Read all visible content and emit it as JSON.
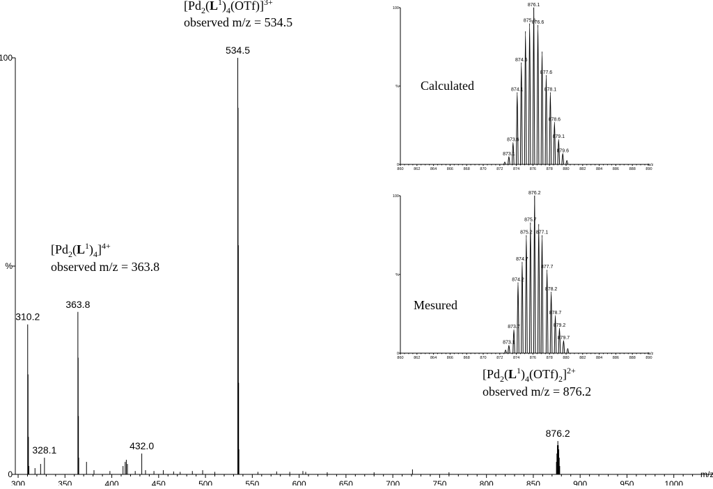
{
  "chart_data": [
    {
      "type": "line",
      "id": "main",
      "xlabel": "m/z",
      "ylabel": "%",
      "xlim": [
        297,
        1024
      ],
      "ylim": [
        0,
        100
      ],
      "x_ticks": [
        300,
        350,
        400,
        450,
        500,
        550,
        600,
        650,
        700,
        750,
        800,
        850,
        900,
        950,
        1000
      ],
      "y_tick_labels": [
        {
          "label": "100",
          "value": 100
        },
        {
          "label": "%",
          "value": 50
        },
        {
          "label": "0",
          "value": 0
        }
      ],
      "peaks": [
        {
          "x": 310.2,
          "y": 36,
          "label": "310.2"
        },
        {
          "x": 328.1,
          "y": 4,
          "label": "328.1"
        },
        {
          "x": 363.8,
          "y": 39,
          "label": "363.8"
        },
        {
          "x": 432.0,
          "y": 5,
          "label": "432.0"
        },
        {
          "x": 534.5,
          "y": 100,
          "label": "534.5"
        },
        {
          "x": 876.2,
          "y": 8,
          "label": "876.2"
        }
      ],
      "minor_peaks": [
        {
          "x": 310.6,
          "y": 24
        },
        {
          "x": 311.0,
          "y": 9
        },
        {
          "x": 311.5,
          "y": 2
        },
        {
          "x": 318.0,
          "y": 1.5
        },
        {
          "x": 324.0,
          "y": 2.5
        },
        {
          "x": 364.1,
          "y": 28
        },
        {
          "x": 364.4,
          "y": 14
        },
        {
          "x": 364.7,
          "y": 4
        },
        {
          "x": 373.0,
          "y": 3
        },
        {
          "x": 381.0,
          "y": 1
        },
        {
          "x": 398.0,
          "y": 0.8
        },
        {
          "x": 412.0,
          "y": 2
        },
        {
          "x": 414.3,
          "y": 3
        },
        {
          "x": 415.5,
          "y": 3.5
        },
        {
          "x": 416.7,
          "y": 2.5
        },
        {
          "x": 425.0,
          "y": 0.8
        },
        {
          "x": 436.0,
          "y": 1
        },
        {
          "x": 445.0,
          "y": 0.8
        },
        {
          "x": 455.0,
          "y": 1
        },
        {
          "x": 466.0,
          "y": 0.7
        },
        {
          "x": 473.0,
          "y": 0.6
        },
        {
          "x": 486.0,
          "y": 0.8
        },
        {
          "x": 497.0,
          "y": 1
        },
        {
          "x": 510.0,
          "y": 0.6
        },
        {
          "x": 534.8,
          "y": 88
        },
        {
          "x": 535.1,
          "y": 55
        },
        {
          "x": 535.4,
          "y": 22
        },
        {
          "x": 535.7,
          "y": 6
        },
        {
          "x": 556.0,
          "y": 0.6
        },
        {
          "x": 576.0,
          "y": 0.7
        },
        {
          "x": 590.0,
          "y": 0.6
        },
        {
          "x": 604.0,
          "y": 0.8
        },
        {
          "x": 607.0,
          "y": 0.6
        },
        {
          "x": 630.0,
          "y": 0.5
        },
        {
          "x": 680.0,
          "y": 0.5
        },
        {
          "x": 721.0,
          "y": 1.2
        },
        {
          "x": 760.0,
          "y": 0.5
        },
        {
          "x": 874.7,
          "y": 3
        },
        {
          "x": 875.2,
          "y": 5
        },
        {
          "x": 875.7,
          "y": 7
        },
        {
          "x": 876.7,
          "y": 7
        },
        {
          "x": 877.2,
          "y": 6
        },
        {
          "x": 877.7,
          "y": 4
        },
        {
          "x": 878.2,
          "y": 2
        }
      ]
    },
    {
      "type": "line",
      "id": "calculated",
      "xlabel": "m/z",
      "ylabel": "%",
      "xlim": [
        860,
        890
      ],
      "ylim": [
        0,
        100
      ],
      "x_ticks": [
        860,
        862,
        864,
        866,
        868,
        870,
        872,
        874,
        876,
        878,
        880,
        882,
        884,
        886,
        888,
        890
      ],
      "y_tick_labels": [
        {
          "label": "100",
          "value": 100
        },
        {
          "label": "%",
          "value": 50
        },
        {
          "label": "0",
          "value": 0
        }
      ],
      "peaks": [
        {
          "x": 872.6,
          "y": 1.5,
          "label": ""
        },
        {
          "x": 873.1,
          "y": 5,
          "label": "873.1"
        },
        {
          "x": 873.6,
          "y": 14,
          "label": "873.6"
        },
        {
          "x": 874.1,
          "y": 46,
          "label": "874.1"
        },
        {
          "x": 874.6,
          "y": 65,
          "label": "874.6"
        },
        {
          "x": 875.1,
          "y": 85,
          "label": ""
        },
        {
          "x": 875.6,
          "y": 90,
          "label": "875.6"
        },
        {
          "x": 876.1,
          "y": 100,
          "label": "876.1"
        },
        {
          "x": 876.6,
          "y": 89,
          "label": "876.6"
        },
        {
          "x": 877.1,
          "y": 72,
          "label": ""
        },
        {
          "x": 877.6,
          "y": 57,
          "label": "877.6"
        },
        {
          "x": 878.1,
          "y": 46,
          "label": "878.1"
        },
        {
          "x": 878.6,
          "y": 27,
          "label": "878.6"
        },
        {
          "x": 879.1,
          "y": 16,
          "label": "879.1"
        },
        {
          "x": 879.6,
          "y": 7,
          "label": "879.6"
        },
        {
          "x": 880.1,
          "y": 2.5,
          "label": ""
        }
      ]
    },
    {
      "type": "line",
      "id": "measured",
      "xlabel": "m/z",
      "ylabel": "%",
      "xlim": [
        860,
        890
      ],
      "ylim": [
        0,
        100
      ],
      "x_ticks": [
        860,
        862,
        864,
        866,
        868,
        870,
        872,
        874,
        876,
        878,
        880,
        882,
        884,
        886,
        888,
        890
      ],
      "y_tick_labels": [
        {
          "label": "100",
          "value": 100
        },
        {
          "label": "%",
          "value": 50
        },
        {
          "label": "0",
          "value": 0
        }
      ],
      "peaks": [
        {
          "x": 872.7,
          "y": 2,
          "label": ""
        },
        {
          "x": 873.1,
          "y": 5,
          "label": "873.1"
        },
        {
          "x": 873.7,
          "y": 15,
          "label": "873.7"
        },
        {
          "x": 874.2,
          "y": 45,
          "label": "874.2"
        },
        {
          "x": 874.7,
          "y": 58,
          "label": "874.7"
        },
        {
          "x": 875.2,
          "y": 75,
          "label": "875.2"
        },
        {
          "x": 875.7,
          "y": 83,
          "label": "875.7"
        },
        {
          "x": 876.2,
          "y": 100,
          "label": "876.2"
        },
        {
          "x": 876.7,
          "y": 82,
          "label": ""
        },
        {
          "x": 877.1,
          "y": 75,
          "label": "877.1"
        },
        {
          "x": 877.7,
          "y": 53,
          "label": "877.7"
        },
        {
          "x": 878.2,
          "y": 39,
          "label": "878.2"
        },
        {
          "x": 878.7,
          "y": 24,
          "label": "878.7"
        },
        {
          "x": 879.2,
          "y": 16,
          "label": "879.2"
        },
        {
          "x": 879.7,
          "y": 8,
          "label": "879.7"
        },
        {
          "x": 880.2,
          "y": 3,
          "label": ""
        }
      ]
    }
  ],
  "annotations": {
    "ion_534": {
      "formula": "[Pd2(L1)4(OTf)]3+",
      "observed": "observed m/z = 534.5"
    },
    "ion_363": {
      "formula": "[Pd2(L1)4]4+",
      "observed": "observed m/z = 363.8"
    },
    "ion_876": {
      "formula": "[Pd2(L1)4(OTf)2]2+",
      "observed": "observed m/z = 876.2"
    },
    "calculated_label": "Calculated",
    "measured_label": "Mesured"
  }
}
